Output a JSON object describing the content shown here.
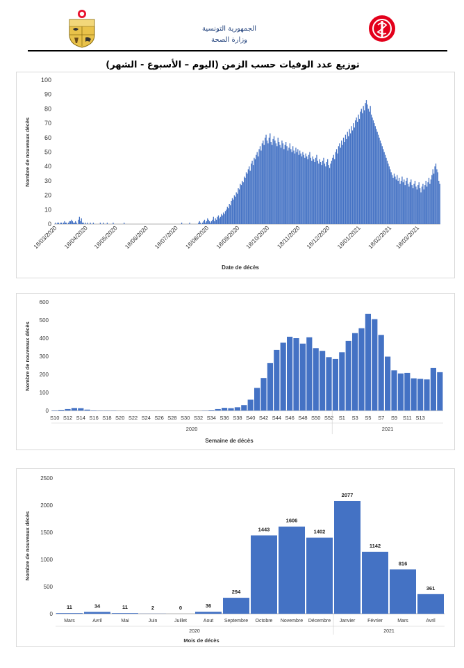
{
  "header": {
    "line1": "الجمهورية التونسية",
    "line2": "وزارة الصحة",
    "emblem_left_icon": "tunisia-coat-of-arms-icon",
    "emblem_right_icon": "ministry-health-logo-icon"
  },
  "main_title": "توزيع عدد الوفيات حسب الزمن (اليوم – الأسبوع - الشهر)",
  "chart_data": [
    {
      "type": "bar",
      "title": "",
      "xlabel": "Date de décès",
      "ylabel": "Nombre de nouveaux décès",
      "ylim": [
        0,
        100
      ],
      "yticks": [
        0,
        10,
        20,
        30,
        40,
        50,
        60,
        70,
        80,
        90,
        100
      ],
      "x_tick_labels": [
        "18/03/2020",
        "18/04/2020",
        "18/05/2020",
        "18/06/2020",
        "18/07/2020",
        "18/08/2020",
        "18/09/2020",
        "18/10/2020",
        "18/11/2020",
        "18/12/2020",
        "18/01/2021",
        "18/02/2021",
        "18/03/2021"
      ],
      "start_date": "2020-03-18",
      "color": "#4472c4",
      "values": [
        0,
        1,
        0,
        1,
        1,
        0,
        1,
        1,
        0,
        1,
        2,
        1,
        1,
        0,
        1,
        2,
        2,
        3,
        2,
        1,
        1,
        2,
        1,
        0,
        3,
        5,
        2,
        4,
        1,
        1,
        0,
        1,
        0,
        1,
        0,
        0,
        1,
        0,
        0,
        1,
        0,
        0,
        0,
        0,
        0,
        0,
        1,
        0,
        0,
        1,
        0,
        0,
        0,
        1,
        0,
        0,
        0,
        0,
        0,
        1,
        0,
        0,
        0,
        0,
        0,
        0,
        0,
        0,
        0,
        0,
        1,
        0,
        0,
        0,
        0,
        0,
        0,
        0,
        0,
        0,
        0,
        0,
        0,
        0,
        0,
        0,
        0,
        0,
        0,
        0,
        0,
        0,
        0,
        0,
        0,
        0,
        0,
        0,
        0,
        0,
        0,
        0,
        0,
        0,
        0,
        0,
        0,
        0,
        0,
        0,
        0,
        0,
        0,
        0,
        0,
        0,
        0,
        0,
        0,
        0,
        0,
        0,
        0,
        0,
        0,
        0,
        0,
        0,
        1,
        0,
        0,
        0,
        0,
        0,
        0,
        0,
        1,
        0,
        0,
        0,
        0,
        0,
        0,
        0,
        0,
        1,
        2,
        1,
        0,
        1,
        2,
        3,
        1,
        2,
        4,
        3,
        2,
        1,
        2,
        3,
        5,
        2,
        4,
        3,
        5,
        6,
        4,
        5,
        7,
        6,
        8,
        7,
        9,
        10,
        12,
        11,
        14,
        13,
        16,
        18,
        17,
        20,
        19,
        22,
        21,
        25,
        24,
        28,
        27,
        30,
        29,
        33,
        32,
        36,
        35,
        38,
        40,
        37,
        42,
        44,
        41,
        46,
        45,
        48,
        50,
        47,
        52,
        54,
        51,
        56,
        58,
        55,
        60,
        62,
        58,
        56,
        60,
        63,
        57,
        55,
        59,
        61,
        58,
        56,
        54,
        60,
        57,
        55,
        53,
        58,
        56,
        52,
        55,
        57,
        54,
        51,
        53,
        56,
        52,
        50,
        54,
        51,
        49,
        53,
        50,
        52,
        48,
        51,
        49,
        47,
        50,
        48,
        46,
        49,
        47,
        45,
        48,
        50,
        46,
        44,
        47,
        45,
        43,
        46,
        48,
        44,
        42,
        45,
        43,
        41,
        44,
        46,
        42,
        40,
        43,
        45,
        41,
        39,
        42,
        44,
        46,
        48,
        45,
        50,
        52,
        49,
        54,
        56,
        53,
        58,
        55,
        60,
        57,
        62,
        59,
        64,
        61,
        66,
        63,
        68,
        65,
        70,
        67,
        72,
        74,
        71,
        76,
        73,
        78,
        80,
        77,
        82,
        79,
        84,
        86,
        83,
        80,
        78,
        82,
        76,
        74,
        72,
        70,
        68,
        66,
        64,
        62,
        60,
        58,
        56,
        54,
        52,
        50,
        48,
        46,
        44,
        42,
        40,
        38,
        36,
        34,
        32,
        35,
        33,
        31,
        34,
        30,
        32,
        28,
        30,
        33,
        29,
        31,
        27,
        30,
        32,
        28,
        26,
        29,
        31,
        27,
        25,
        28,
        30,
        26,
        24,
        27,
        29,
        25,
        22,
        26,
        28,
        24,
        27,
        30,
        26,
        29,
        32,
        28,
        31,
        34,
        38,
        35,
        40,
        42,
        38,
        36,
        30,
        28
      ]
    },
    {
      "type": "bar",
      "title": "",
      "xlabel": "Semaine de décès",
      "ylabel": "Nombre de nouveaux décès",
      "ylim": [
        0,
        600
      ],
      "yticks": [
        0,
        100,
        200,
        300,
        400,
        500,
        600
      ],
      "x_tick_labels": [
        "S10",
        "S12",
        "S14",
        "S16",
        "S18",
        "S20",
        "S22",
        "S24",
        "S26",
        "S28",
        "S30",
        "S32",
        "S34",
        "S36",
        "S38",
        "S40",
        "S42",
        "S44",
        "S46",
        "S48",
        "S50",
        "S52",
        "S1",
        "S3",
        "S5",
        "S7",
        "S9",
        "S11",
        "S13"
      ],
      "year_labels": [
        "2020",
        "2021"
      ],
      "color": "#4472c4",
      "values": [
        2,
        4,
        8,
        14,
        13,
        5,
        2,
        1,
        1,
        1,
        0,
        0,
        0,
        0,
        0,
        0,
        0,
        0,
        0,
        0,
        0,
        0,
        0,
        1,
        3,
        8,
        15,
        13,
        18,
        30,
        60,
        125,
        180,
        262,
        335,
        375,
        408,
        400,
        370,
        405,
        345,
        330,
        295,
        285,
        322,
        385,
        428,
        455,
        535,
        505,
        418,
        298,
        222,
        205,
        208,
        178,
        175,
        172,
        235,
        212
      ]
    },
    {
      "type": "bar",
      "title": "",
      "xlabel": "Mois de décès",
      "ylabel": "Nombre de nouveaux décès",
      "ylim": [
        0,
        2500
      ],
      "yticks": [
        0,
        500,
        1000,
        1500,
        2000,
        2500
      ],
      "categories": [
        "Mars",
        "Avril",
        "Mai",
        "Juin",
        "Juillet",
        "Aout",
        "Septembre",
        "Octobre",
        "Novembre",
        "Décembre",
        "Janvier",
        "Février",
        "Mars",
        "Avril"
      ],
      "values": [
        11,
        34,
        11,
        2,
        0,
        36,
        294,
        1443,
        1606,
        1402,
        2077,
        1142,
        816,
        361
      ],
      "year_labels": [
        "2020",
        "2021"
      ],
      "color": "#4472c4"
    }
  ]
}
